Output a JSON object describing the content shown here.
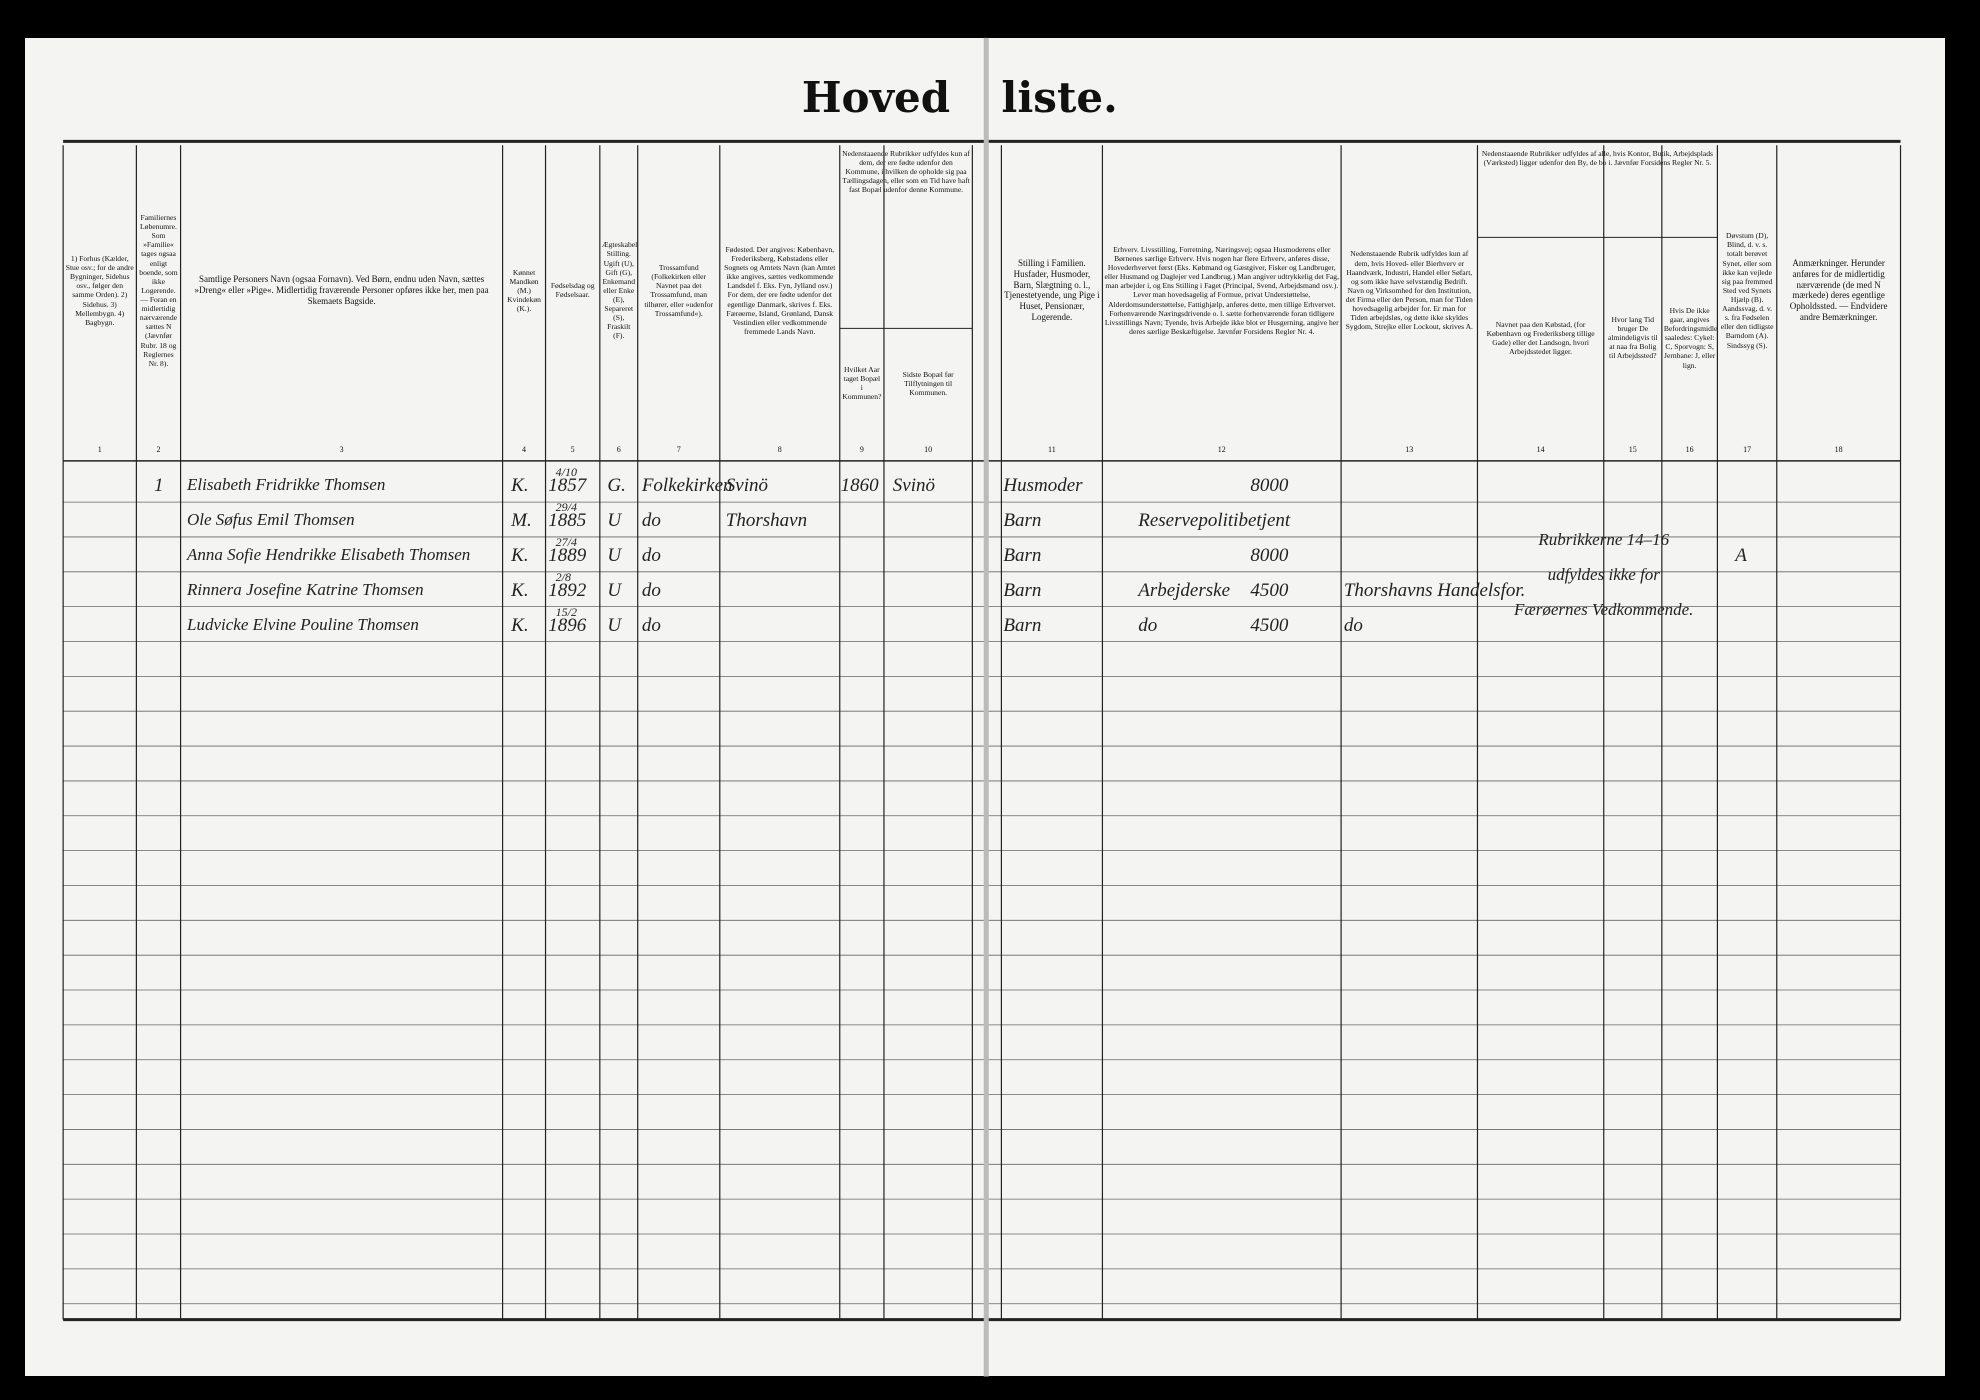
{
  "header": {
    "title": [
      "Hoved",
      "liste."
    ],
    "group_9_10": "Nedenstaaende Rubrikker udfyldes kun af dem, der ere fødte udenfor den Kommune, i hvilken de opholde sig paa Tællingsdagen, eller som en Tid have haft fast Bopæl udenfor denne Kommune.",
    "group_14_16": "Nedenstaaende Rubrikker udfyldes af alle, hvis Kontor, Butik, Arbejdsplads (Værksted) ligger udenfor den By, de bo i. Jævnfør Forsidens Regler Nr. 5.",
    "columns": [
      {
        "number": "1",
        "heading": "1) Forhus (Kælder, Stue osv.; for de andre Bygninger, Sidehus osv., følger den samme Orden). 2) Sidehus. 3) Mellembygn. 4) Bagbygn."
      },
      {
        "number": "2",
        "heading": "Familiernes Løbenumre. Som »Familie« tages ogsaa enligt boende, som ikke Logerende. — Foran en midlertidig nærværende sættes N (Jævnfør Rubr. 18 og Reglernes Nr. 8)."
      },
      {
        "number": "3",
        "heading": "Samtlige Personers Navn (ogsaa Fornavn). Ved Børn, endnu uden Navn, sættes »Dreng« eller »Pige«. Midlertidig fraværende Personer opføres ikke her, men paa Skemaets Bagside."
      },
      {
        "number": "4",
        "heading": "Kønnet Mandkøn (M.) Kvindekøn (K.)."
      },
      {
        "number": "5",
        "heading": "Fødselsdag og Fødselsaar."
      },
      {
        "number": "6",
        "heading": "Ægteskabelig Stilling. Ugift (U), Gift (G), Enkemand eller Enke (E), Separeret (S), Fraskilt (F)."
      },
      {
        "number": "7",
        "heading": "Trossamfund (Folkekirken eller Navnet paa det Trossamfund, man tilhører, eller »udenfor Trossamfund«)."
      },
      {
        "number": "8",
        "heading": "Fødested. Der angives: København, Frederiksberg, Købstadens eller Sognets og Amtets Navn (kan Amtet ikke angives, sættes vedkommende Landsdel f. Eks. Fyn, Jylland osv.) For dem, der ere fødte udenfor det egentlige Danmark, skrives f. Eks. Færøerne, Island, Grønland, Dansk Vestindien eller vedkommende fremmede Lands Navn."
      },
      {
        "number": "9",
        "heading": "Hvilket Aar taget Bopæl i Kommunen?"
      },
      {
        "number": "10",
        "heading": "Sidste Bopæl før Tilflytningen til Kommunen."
      },
      {
        "number": "11",
        "heading": "Stilling i Familien. Husfader, Husmoder, Barn, Slægtning o. l., Tjenestetyende, ung Pige i Huset, Pensionær, Logerende."
      },
      {
        "number": "12",
        "heading": "Erhverv. Livsstilling, Forretning, Næringsvej; ogsaa Husmoderens eller Børnenes særlige Erhverv. Hvis nogen har flere Erhverv, anføres disse, Hovederhvervet først (Eks. Købmand og Gæstgiver, Fisker og Landbruger, eller Husmand og Daglejer ved Landbrug.) Man angiver udtrykkelig det Fag, man arbejder i, og Ens Stilling i Faget (Principal, Svend, Arbejdsmand osv.). Lever man hovedsagelig af Formue, privat Understøttelse, Alderdomsunderstøttelse, Fattighjælp, anføres dette, men tillige Erhvervet. Forhenværende Næringsdrivende o. l. sætte forhenværende foran tidligere Livsstillings Navn; Tyende, hvis Arbejde ikke blot er Husgerning, angive her deres særlige Beskæftigelse. Jævnfør Forsidens Regler Nr. 4."
      },
      {
        "number": "13",
        "heading": "Nedenstaaende Rubrik udfyldes kun af dem, hvis Hoved- eller Bierhverv er Haandværk, Industri, Handel eller Søfart, og som ikke have selvstændig Bedrift. Navn og Virksomhed for den Institution, det Firma eller den Person, man for Tiden hovedsagelig arbejder for. Er man for Tiden arbejdsløs, og dette ikke skyldes Sygdom, Strejke eller Lockout, skrives A."
      },
      {
        "number": "14",
        "heading": "Navnet paa den Købstad, (for København og Frederiksberg tillige Gade) eller det Landsogn, hvori Arbejdsstedet ligger."
      },
      {
        "number": "15",
        "heading": "Hvor lang Tid bruger De almindeligvis til at naa fra Bolig til Arbejdssted?"
      },
      {
        "number": "16",
        "heading": "Hvis De ikke gaar, angives Befordringsmidlet saaledes: Cykel: C, Sporvogn: S, Jernbane: J, eller lign."
      },
      {
        "number": "17",
        "heading": "Døvstum (D), Blind, d. v. s. totalt berøvet Synet, eller som ikke kan vejlede sig paa fremmed Sted ved Synets Hjælp (B). Aandssvag, d. v. s. fra Fødselen eller den tidligste Barndom (A). Sindssyg (S)."
      },
      {
        "number": "18",
        "heading": "Anmærkninger. Herunder anføres for de midlertidig nærværende (de med N mærkede) deres egentlige Opholdssted. — Endvidere andre Bemærkninger."
      }
    ]
  },
  "rows": [
    {
      "household": "1",
      "name": "Elisabeth Fridrikke Thomsen",
      "sex": "K.",
      "birth_day": "4/10",
      "birth_year": "1857",
      "marital": "G.",
      "religion": "Folkekirken",
      "birthplace": "Svinö",
      "moved_year": "1860",
      "last_residence": "Svinö",
      "family_role": "Husmoder",
      "income": "8000"
    },
    {
      "name": "Ole Søfus Emil Thomsen",
      "sex": "M.",
      "birth_day": "29/4",
      "birth_year": "1885",
      "marital": "U",
      "religion": "do",
      "birthplace": "Thorshavn",
      "family_role": "Barn",
      "occupation": "Reservepolitibetjent"
    },
    {
      "name": "Anna Sofie Hendrikke Elisabeth Thomsen",
      "sex": "K.",
      "birth_day": "27/4",
      "birth_year": "1889",
      "marital": "U",
      "religion": "do",
      "family_role": "Barn",
      "income": "8000",
      "disability": "A"
    },
    {
      "name": "Rinnera Josefine Katrine Thomsen",
      "sex": "K.",
      "birth_day": "2/8",
      "birth_year": "1892",
      "marital": "U",
      "religion": "do",
      "family_role": "Barn",
      "occupation": "Arbejderske",
      "income": "4500",
      "employer": "Thorshavns Handelsfor."
    },
    {
      "name": "Ludvicke Elvine Pouline Thomsen",
      "sex": "K.",
      "birth_day": "15/2",
      "birth_year": "1896",
      "marital": "U",
      "religion": "do",
      "family_role": "Barn",
      "occupation": "do",
      "income": "4500",
      "employer": "do"
    }
  ],
  "note": [
    "Rubrikkerne 14–16",
    "udfyldes ikke for",
    "Færøernes Vedkommende."
  ]
}
